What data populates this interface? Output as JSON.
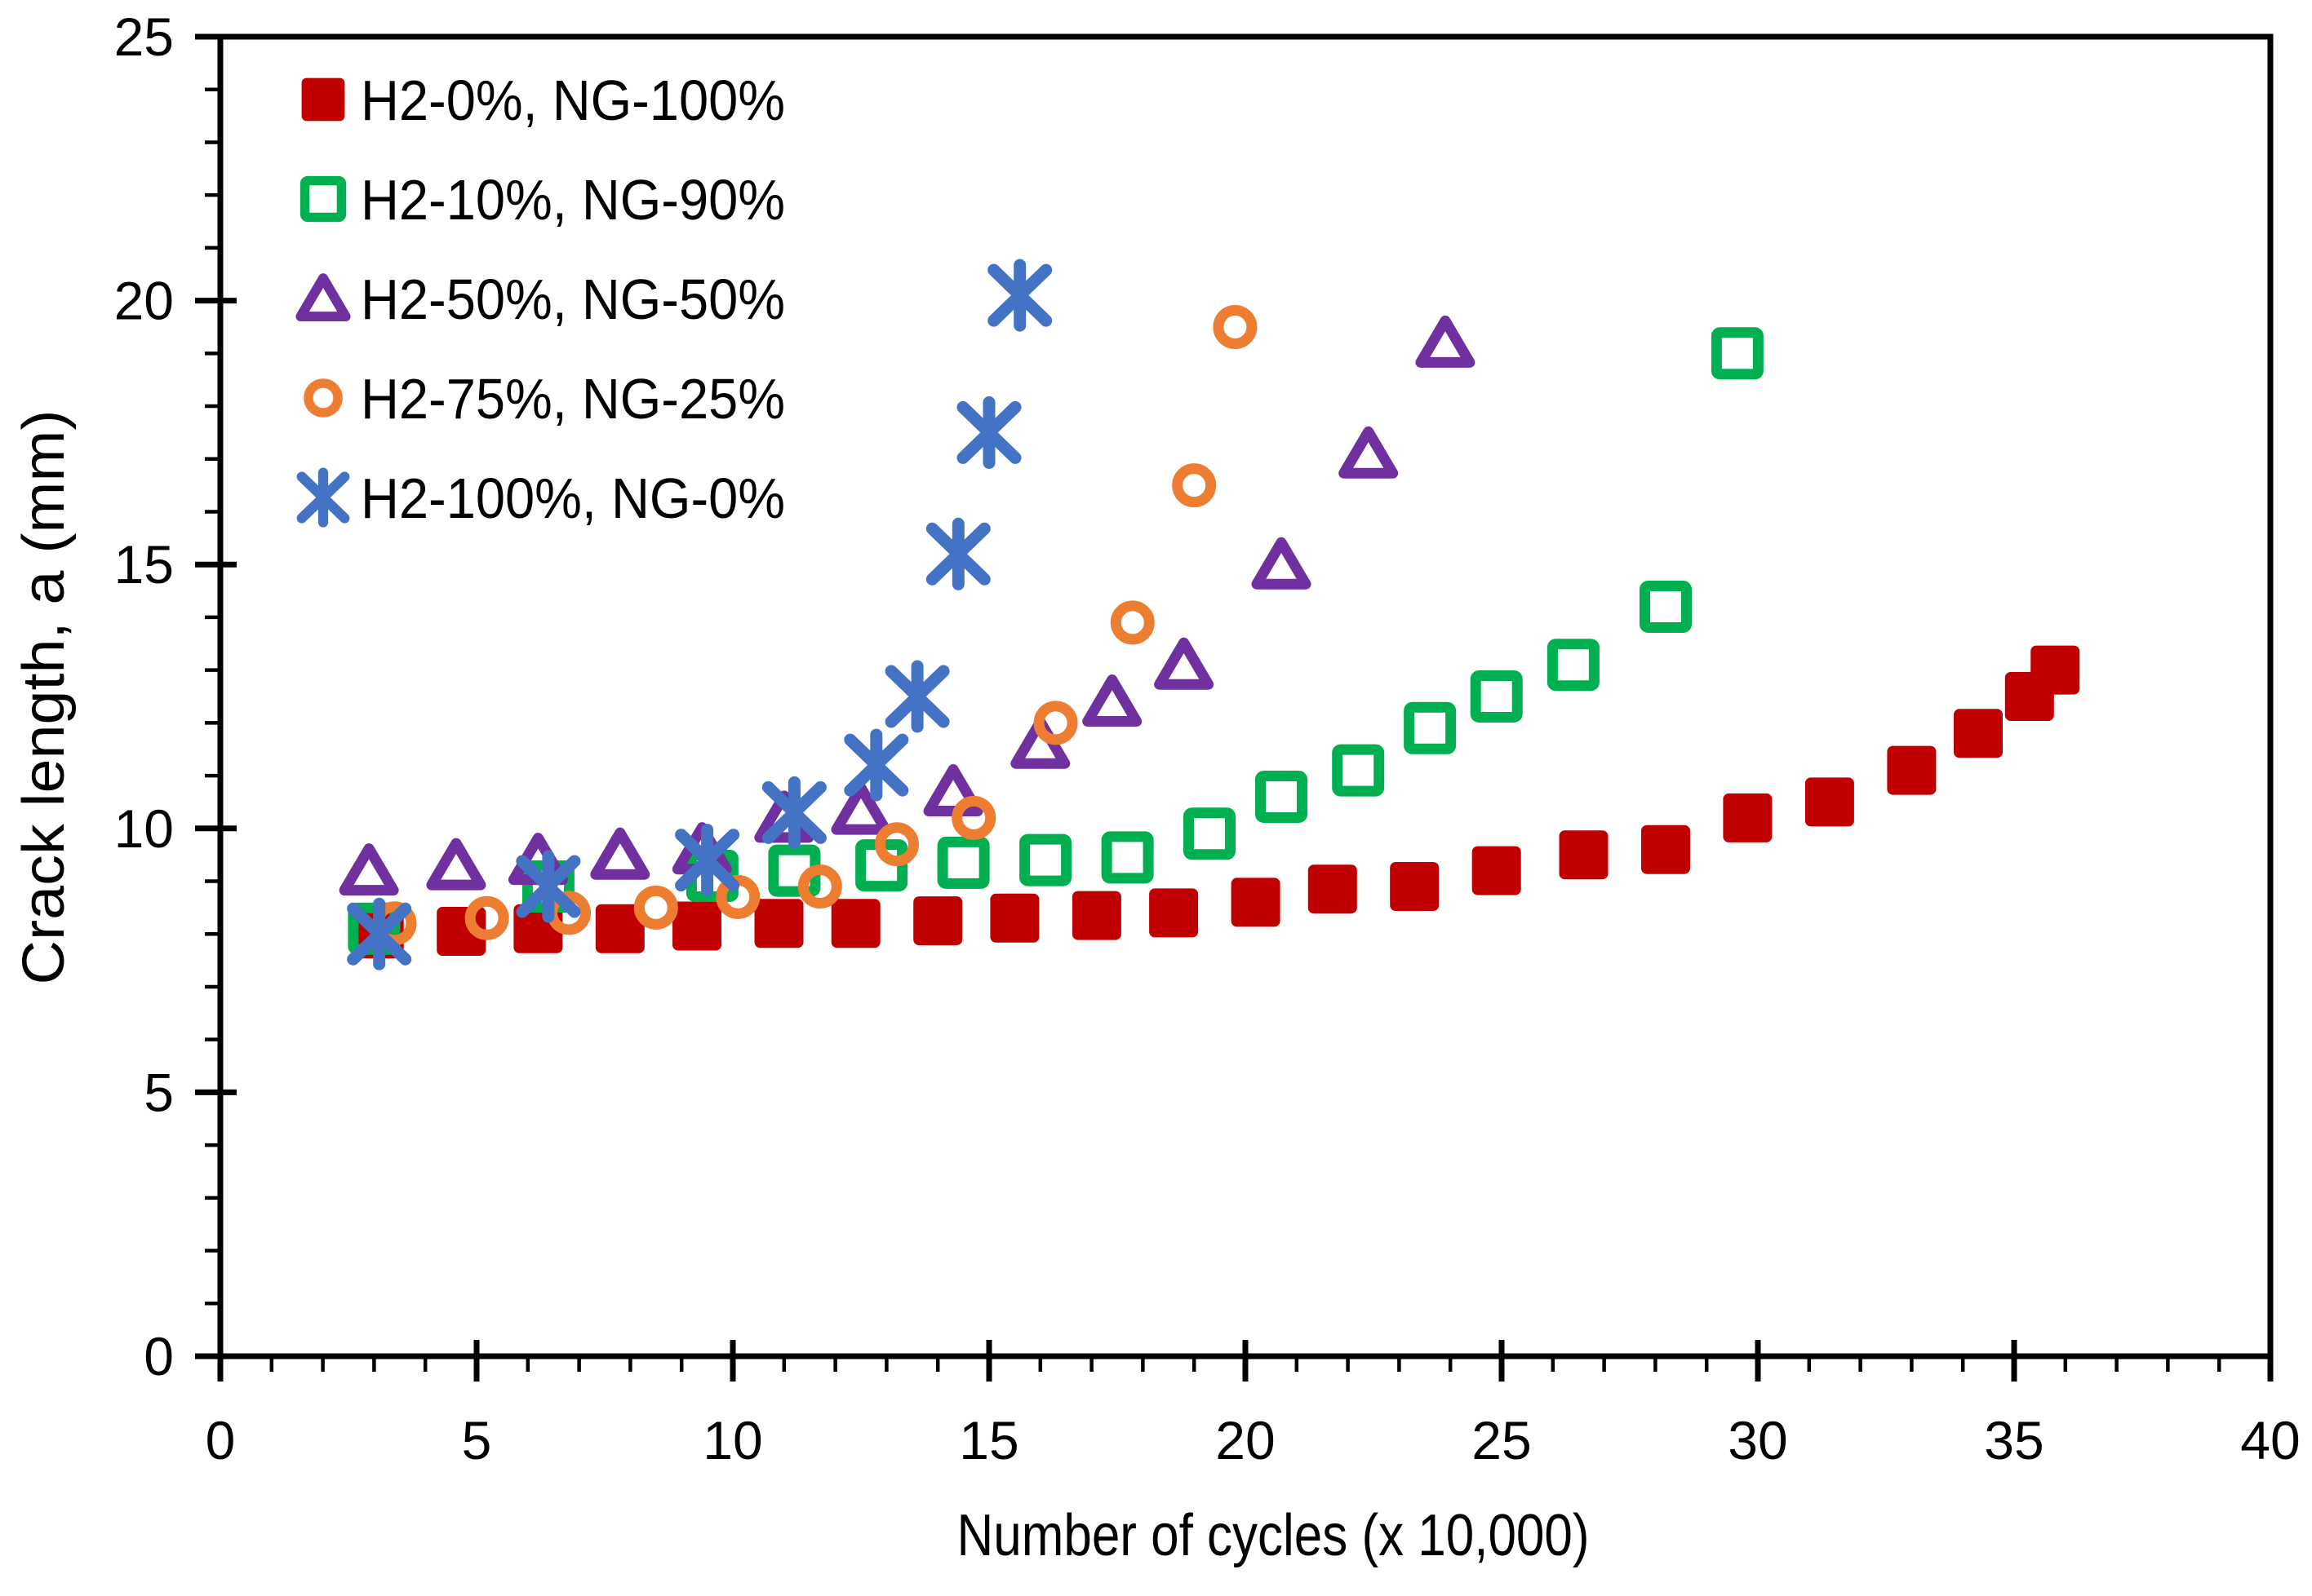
{
  "chart_data": {
    "type": "scatter",
    "title": "",
    "xlabel": "Number of cycles  (x 10,000)",
    "ylabel": "Crack length, a (mm)",
    "xlim": [
      0,
      40
    ],
    "ylim": [
      0,
      25
    ],
    "x_major_ticks": [
      0,
      5,
      10,
      15,
      20,
      25,
      30,
      35,
      40
    ],
    "y_major_ticks": [
      0,
      5,
      10,
      15,
      20,
      25
    ],
    "x_minor_step": 1,
    "y_minor_step": 1,
    "grid": false,
    "frame": true,
    "legend_position": "top-left-inside",
    "axis_color": "#000000",
    "series": [
      {
        "name": "H2-0%, NG-100%",
        "marker": "filled-square",
        "color": "#C00000",
        "points": [
          [
            3.1,
            8.0
          ],
          [
            4.7,
            8.05
          ],
          [
            6.2,
            8.1
          ],
          [
            7.8,
            8.1
          ],
          [
            9.3,
            8.15
          ],
          [
            10.9,
            8.2
          ],
          [
            12.4,
            8.2
          ],
          [
            14.0,
            8.25
          ],
          [
            15.5,
            8.3
          ],
          [
            17.1,
            8.35
          ],
          [
            18.6,
            8.4
          ],
          [
            20.2,
            8.6
          ],
          [
            21.7,
            8.85
          ],
          [
            23.3,
            8.9
          ],
          [
            24.9,
            9.2
          ],
          [
            26.6,
            9.5
          ],
          [
            28.2,
            9.6
          ],
          [
            29.8,
            10.2
          ],
          [
            31.4,
            10.5
          ],
          [
            33.0,
            11.1
          ],
          [
            34.3,
            11.8
          ],
          [
            35.3,
            12.5
          ],
          [
            35.8,
            13.0
          ]
        ]
      },
      {
        "name": "H2-10%, NG-90%",
        "marker": "open-square",
        "color": "#00B050",
        "points": [
          [
            3.0,
            8.1
          ],
          [
            6.4,
            8.9
          ],
          [
            9.6,
            9.1
          ],
          [
            11.2,
            9.2
          ],
          [
            12.9,
            9.3
          ],
          [
            14.5,
            9.35
          ],
          [
            16.1,
            9.4
          ],
          [
            17.7,
            9.45
          ],
          [
            19.3,
            9.9
          ],
          [
            20.7,
            10.6
          ],
          [
            22.2,
            11.1
          ],
          [
            23.6,
            11.9
          ],
          [
            24.9,
            12.5
          ],
          [
            26.4,
            13.1
          ],
          [
            28.2,
            14.2
          ],
          [
            29.6,
            19.0
          ]
        ]
      },
      {
        "name": "H2-50%, NG-50%",
        "marker": "open-triangle",
        "color": "#7030A0",
        "points": [
          [
            2.9,
            9.2
          ],
          [
            4.6,
            9.3
          ],
          [
            6.2,
            9.4
          ],
          [
            7.8,
            9.5
          ],
          [
            9.4,
            9.6
          ],
          [
            11.0,
            10.2
          ],
          [
            12.5,
            10.35
          ],
          [
            14.3,
            10.7
          ],
          [
            16.0,
            11.6
          ],
          [
            17.4,
            12.4
          ],
          [
            18.8,
            13.1
          ],
          [
            20.7,
            15.0
          ],
          [
            22.4,
            17.1
          ],
          [
            23.9,
            19.2
          ]
        ]
      },
      {
        "name": "H2-75%, NG-25%",
        "marker": "open-circle",
        "color": "#ED7D31",
        "points": [
          [
            3.4,
            8.2
          ],
          [
            5.2,
            8.3
          ],
          [
            6.8,
            8.4
          ],
          [
            8.5,
            8.5
          ],
          [
            10.1,
            8.7
          ],
          [
            11.7,
            8.9
          ],
          [
            13.2,
            9.7
          ],
          [
            14.7,
            10.2
          ],
          [
            16.3,
            12.0
          ],
          [
            17.8,
            13.9
          ],
          [
            19.0,
            16.5
          ],
          [
            19.8,
            19.5
          ]
        ]
      },
      {
        "name": "H2-100%, NG-0%",
        "marker": "asterisk",
        "color": "#4472C4",
        "points": [
          [
            3.1,
            8.0
          ],
          [
            6.4,
            8.9
          ],
          [
            9.5,
            9.4
          ],
          [
            11.2,
            10.3
          ],
          [
            12.8,
            11.2
          ],
          [
            13.6,
            12.5
          ],
          [
            14.4,
            15.2
          ],
          [
            15.0,
            17.5
          ],
          [
            15.6,
            20.1
          ]
        ]
      }
    ]
  }
}
